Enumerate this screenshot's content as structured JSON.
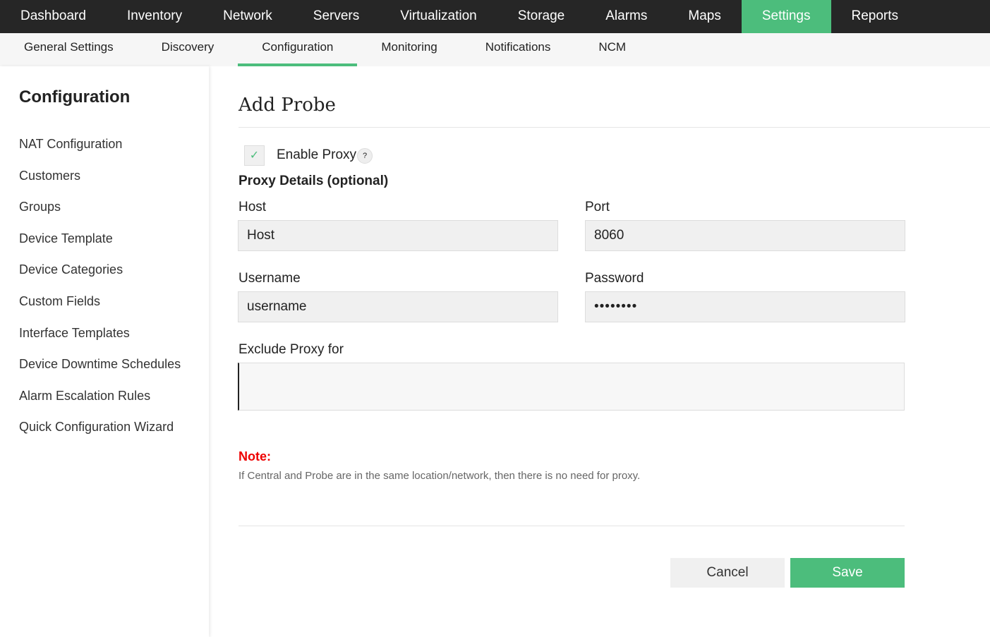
{
  "topnav": [
    "Dashboard",
    "Inventory",
    "Network",
    "Servers",
    "Virtualization",
    "Storage",
    "Alarms",
    "Maps",
    "Settings",
    "Reports"
  ],
  "subnav": [
    "General Settings",
    "Discovery",
    "Configuration",
    "Monitoring",
    "Notifications",
    "NCM"
  ],
  "sidebar": {
    "title": "Configuration",
    "items": [
      "NAT Configuration",
      "Customers",
      "Groups",
      "Device Template",
      "Device Categories",
      "Custom Fields",
      "Interface Templates",
      "Device Downtime Schedules",
      "Alarm Escalation Rules",
      "Quick Configuration Wizard"
    ]
  },
  "form": {
    "title": "Add Probe",
    "enable_proxy": "Enable Proxy",
    "enable_proxy_checked": true,
    "help": "?",
    "section": "Proxy Details (optional)",
    "host_label": "Host",
    "host_value": "Host",
    "port_label": "Port",
    "port_value": "8060",
    "username_label": "Username",
    "username_value": "username",
    "password_label": "Password",
    "password_value": "••••••••",
    "exclude_label": "Exclude Proxy for",
    "exclude_value": "",
    "note_label": "Note:",
    "note_text": "If Central and Probe are in the same location/network, then there is no need for proxy.",
    "cancel": "Cancel",
    "save": "Save"
  },
  "colors": {
    "accent": "#4cbd7c",
    "topbar": "#262626",
    "note": "#ee0000"
  }
}
